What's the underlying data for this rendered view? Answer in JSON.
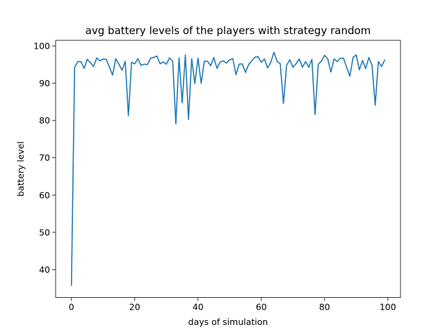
{
  "chart_data": {
    "type": "line",
    "title": "avg battery levels of the players with strategy random",
    "xlabel": "days of simulation",
    "ylabel": "battery level",
    "xlim": [
      -5,
      104
    ],
    "ylim": [
      32.5,
      101.5
    ],
    "xticks": [
      0,
      20,
      40,
      60,
      80,
      100
    ],
    "yticks": [
      40,
      50,
      60,
      70,
      80,
      90,
      100
    ],
    "grid": false,
    "color": "#1f77b4",
    "series": [
      {
        "x": [
          0,
          1,
          2,
          3,
          4,
          5,
          6,
          7,
          8,
          9,
          10,
          11,
          12,
          13,
          14,
          15,
          16,
          17,
          18,
          19,
          20,
          21,
          22,
          23,
          24,
          25,
          26,
          27,
          28,
          29,
          30,
          31,
          32,
          33,
          34,
          35,
          36,
          37,
          38,
          39,
          40,
          41,
          42,
          43,
          44,
          45,
          46,
          47,
          48,
          49,
          50,
          51,
          52,
          53,
          54,
          55,
          56,
          57,
          58,
          59,
          60,
          61,
          62,
          63,
          64,
          65,
          66,
          67,
          68,
          69,
          70,
          71,
          72,
          73,
          74,
          75,
          76,
          77,
          78,
          79,
          80,
          81,
          82,
          83,
          84,
          85,
          86,
          87,
          88,
          89,
          90,
          91,
          92,
          93,
          94,
          95,
          96,
          97,
          98,
          99
        ],
        "values": [
          35.8,
          94.2,
          95.8,
          95.8,
          94.0,
          96.4,
          95.5,
          94.5,
          96.8,
          96.0,
          96.5,
          96.4,
          94.3,
          92.2,
          96.6,
          95.1,
          93.5,
          95.9,
          81.3,
          95.6,
          95.2,
          96.6,
          94.8,
          95.1,
          95.0,
          96.7,
          96.9,
          97.3,
          95.2,
          95.7,
          95.1,
          96.8,
          95.9,
          79.1,
          96.8,
          84.7,
          97.6,
          80.3,
          96.6,
          89.9,
          96.7,
          90.0,
          95.9,
          95.9,
          94.7,
          96.9,
          94.0,
          95.7,
          96.0,
          95.4,
          96.3,
          96.6,
          92.3,
          95.1,
          95.2,
          92.9,
          95.0,
          96.0,
          97.0,
          97.1,
          95.6,
          96.5,
          94.1,
          95.6,
          98.3,
          95.9,
          95.2,
          84.6,
          94.8,
          96.3,
          94.3,
          95.2,
          96.5,
          94.3,
          95.8,
          94.3,
          96.4,
          81.6,
          95.1,
          95.9,
          97.5,
          96.5,
          93.0,
          96.5,
          95.8,
          96.7,
          96.7,
          94.2,
          91.9,
          96.9,
          97.6,
          93.6,
          96.1,
          93.9,
          96.9,
          94.8,
          84.1,
          95.8,
          94.5,
          96.2
        ]
      }
    ]
  }
}
